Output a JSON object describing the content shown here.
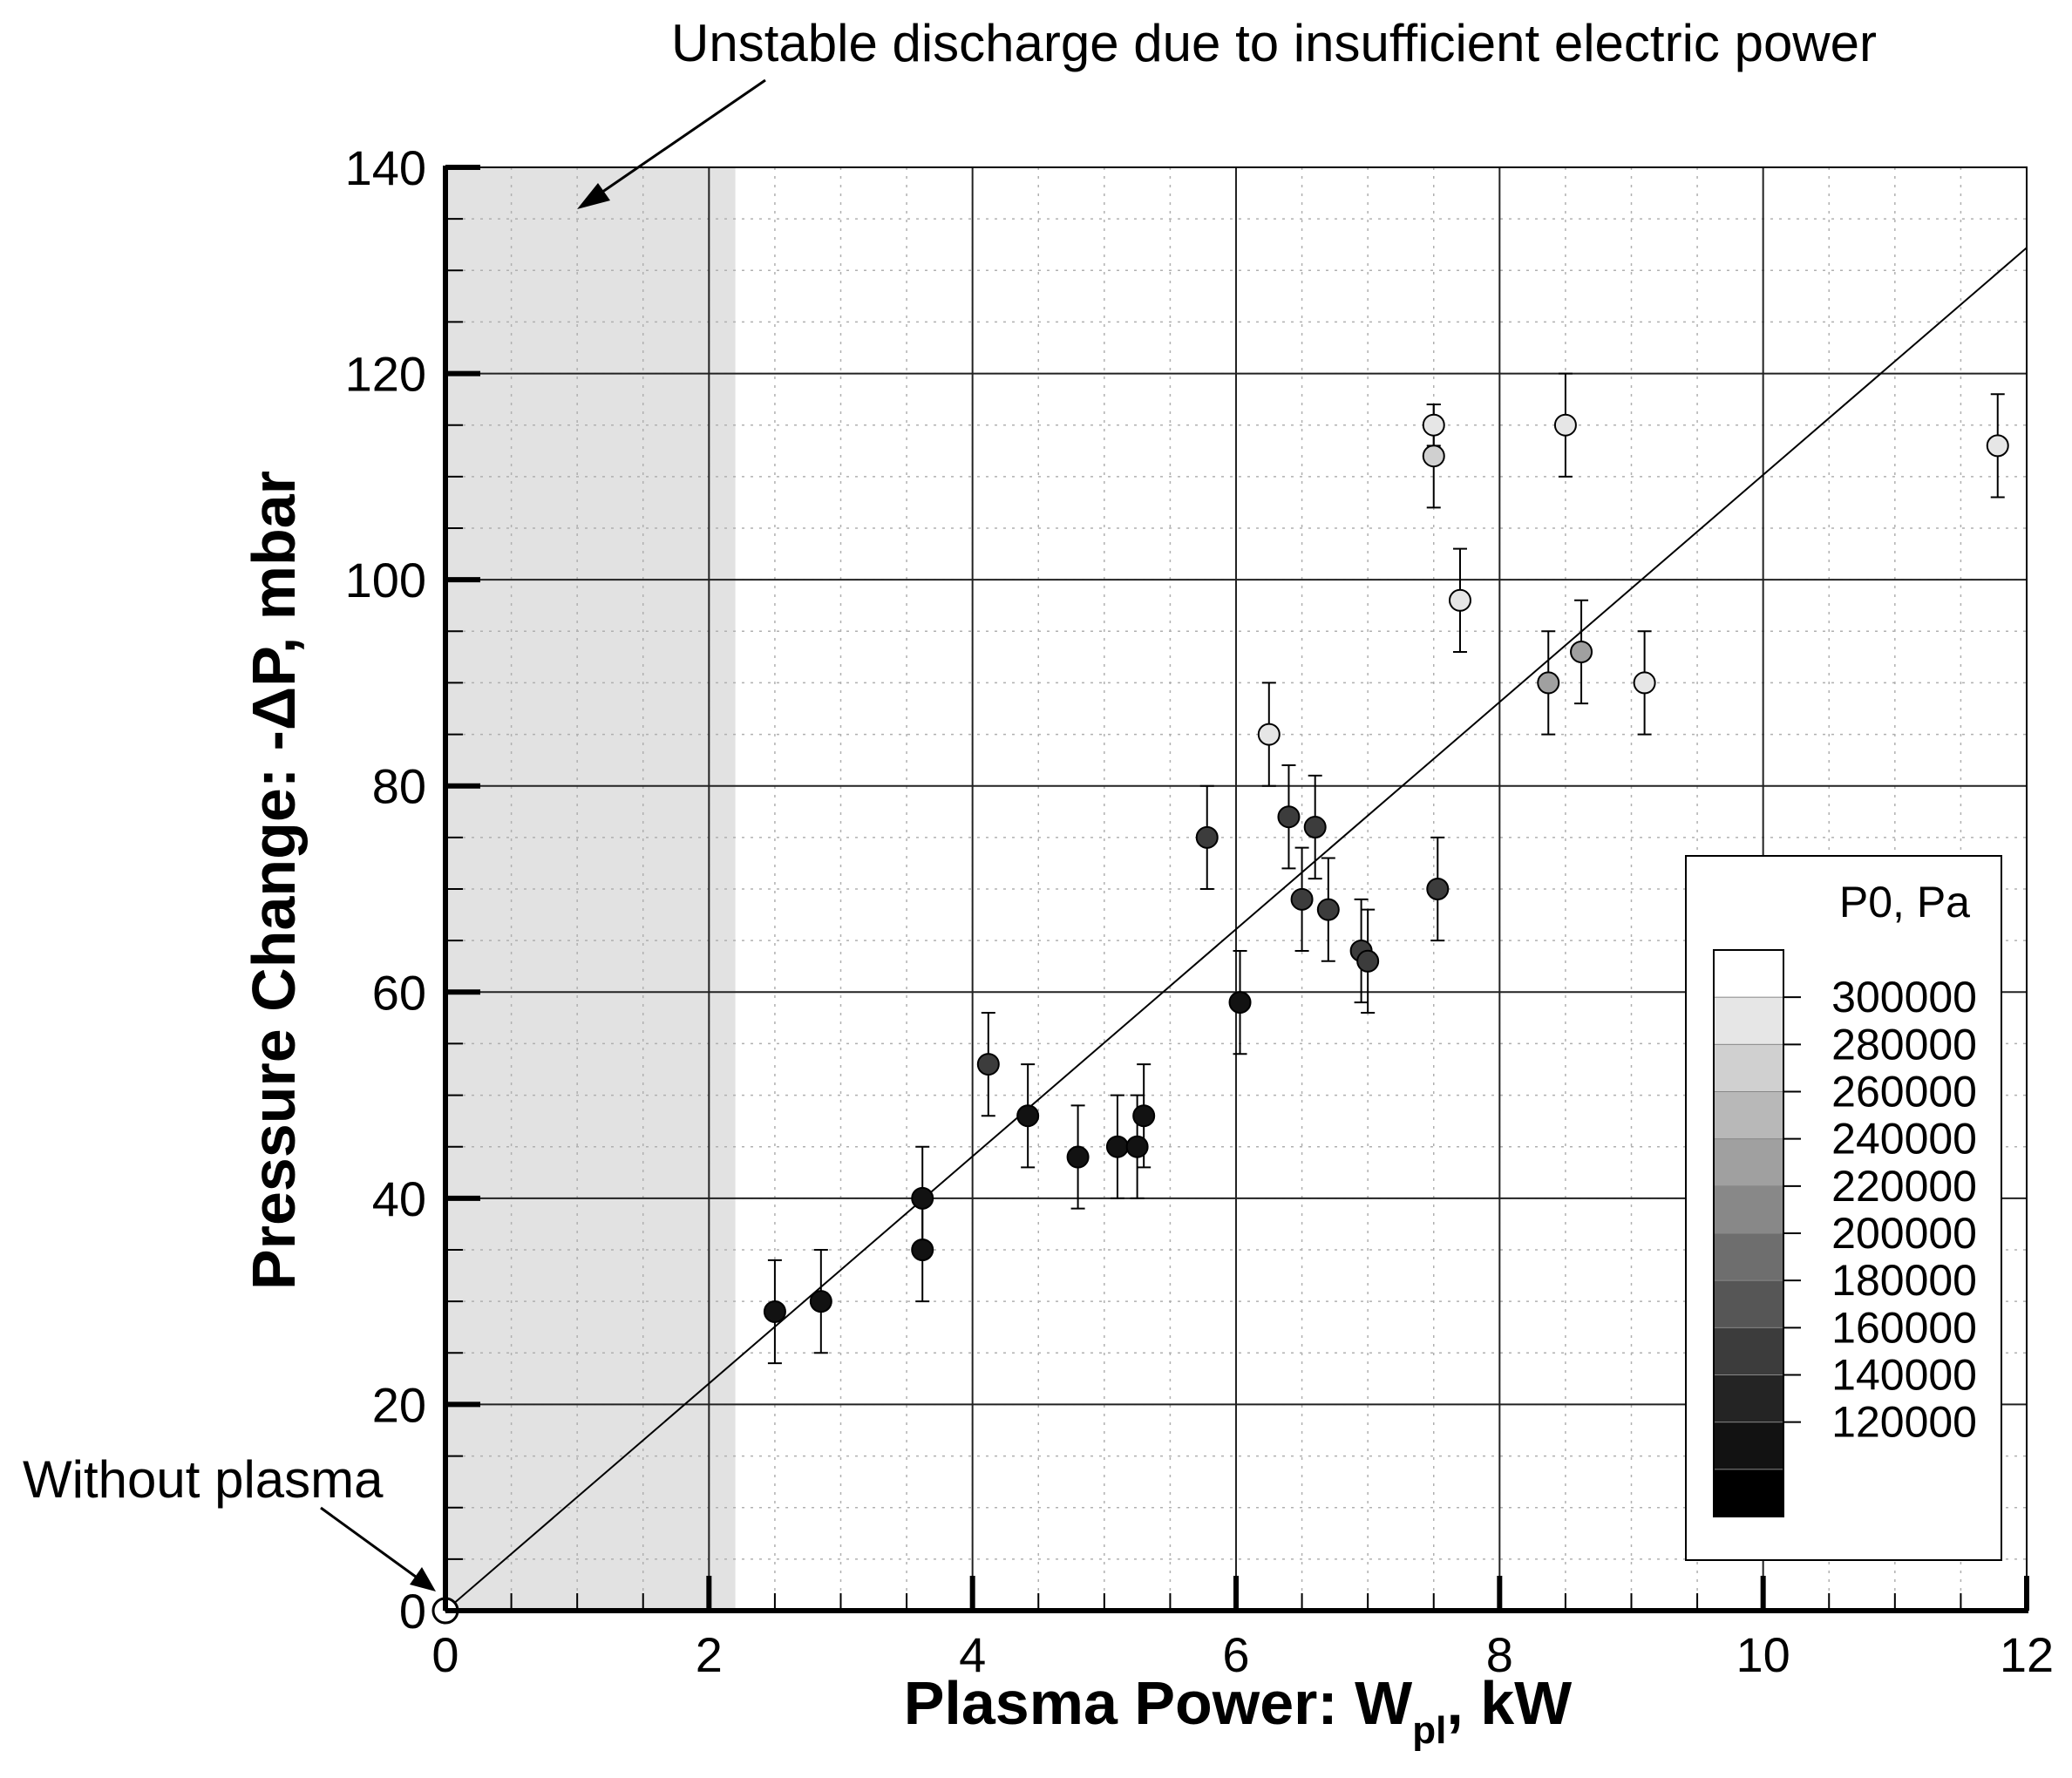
{
  "chart_data": {
    "type": "scatter",
    "title": "",
    "xlabel": "Plasma Power: W",
    "xlabel_sub": "pl",
    "xlabel_unit": ", kW",
    "ylabel": "Pressure Change: -ΔP, mbar",
    "xlim": [
      0,
      12
    ],
    "ylim": [
      0,
      140
    ],
    "x_ticks": [
      0,
      2,
      4,
      6,
      8,
      10,
      12
    ],
    "x_tick_labels": [
      "0",
      "2",
      "4",
      "6",
      "8",
      "10",
      "12"
    ],
    "y_ticks": [
      0,
      20,
      40,
      60,
      80,
      100,
      120,
      140
    ],
    "y_tick_labels": [
      "0",
      "20",
      "40",
      "60",
      "80",
      "100",
      "120",
      "140"
    ],
    "grid": true,
    "shaded_region": {
      "x_range": [
        0,
        2.2
      ],
      "label": "Unstable discharge due to insufficient electric power"
    },
    "fit_line": {
      "x": [
        0,
        12
      ],
      "y": [
        0,
        132.2
      ]
    },
    "baseline_point": {
      "x": 0,
      "y": 0,
      "label": "Without plasma"
    },
    "color_scale": {
      "title": "P0, Pa",
      "values": [
        300000,
        280000,
        260000,
        240000,
        220000,
        200000,
        180000,
        160000,
        140000,
        120000
      ],
      "labels": [
        "300000",
        "280000",
        "260000",
        "240000",
        "220000",
        "200000",
        "180000",
        "160000",
        "140000",
        "120000"
      ],
      "band_colors": [
        "#ffffff",
        "#e6e6e6",
        "#d0d0d0",
        "#b8b8b8",
        "#a0a0a0",
        "#888888",
        "#6e6e6e",
        "#565656",
        "#3c3c3c",
        "#242424",
        "#121212",
        "#000000"
      ]
    },
    "series": [
      {
        "x": 2.5,
        "y": 29,
        "err": 5,
        "p0": 120000
      },
      {
        "x": 2.85,
        "y": 30,
        "err": 5,
        "p0": 120000
      },
      {
        "x": 3.62,
        "y": 40,
        "err": 5,
        "p0": 120000
      },
      {
        "x": 3.62,
        "y": 35,
        "err": 5,
        "p0": 120000
      },
      {
        "x": 4.12,
        "y": 53,
        "err": 5,
        "p0": 170000
      },
      {
        "x": 4.42,
        "y": 48,
        "err": 5,
        "p0": 120000
      },
      {
        "x": 4.8,
        "y": 44,
        "err": 5,
        "p0": 120000
      },
      {
        "x": 5.1,
        "y": 45,
        "err": 5,
        "p0": 120000
      },
      {
        "x": 5.25,
        "y": 45,
        "err": 5,
        "p0": 120000
      },
      {
        "x": 5.3,
        "y": 48,
        "err": 5,
        "p0": 120000
      },
      {
        "x": 5.78,
        "y": 75,
        "err": 5,
        "p0": 170000
      },
      {
        "x": 6.03,
        "y": 59,
        "err": 5,
        "p0": 120000
      },
      {
        "x": 6.25,
        "y": 85,
        "err": 5,
        "p0": 300000
      },
      {
        "x": 6.4,
        "y": 77,
        "err": 5,
        "p0": 170000
      },
      {
        "x": 6.5,
        "y": 69,
        "err": 5,
        "p0": 170000
      },
      {
        "x": 6.6,
        "y": 76,
        "err": 5,
        "p0": 170000
      },
      {
        "x": 6.7,
        "y": 68,
        "err": 5,
        "p0": 170000
      },
      {
        "x": 6.95,
        "y": 64,
        "err": 5,
        "p0": 170000
      },
      {
        "x": 7.0,
        "y": 63,
        "err": 5,
        "p0": 170000
      },
      {
        "x": 7.53,
        "y": 70,
        "err": 5,
        "p0": 170000
      },
      {
        "x": 7.5,
        "y": 115,
        "err": 2,
        "p0": 300000
      },
      {
        "x": 7.5,
        "y": 112,
        "err": 5,
        "p0": 270000
      },
      {
        "x": 7.7,
        "y": 98,
        "err": 5,
        "p0": 285000
      },
      {
        "x": 8.37,
        "y": 90,
        "err": 5,
        "p0": 230000
      },
      {
        "x": 8.5,
        "y": 115,
        "err": 5,
        "p0": 300000
      },
      {
        "x": 8.62,
        "y": 93,
        "err": 5,
        "p0": 230000
      },
      {
        "x": 9.1,
        "y": 90,
        "err": 5,
        "p0": 285000
      },
      {
        "x": 11.78,
        "y": 113,
        "err": 5,
        "p0": 300000
      }
    ]
  }
}
